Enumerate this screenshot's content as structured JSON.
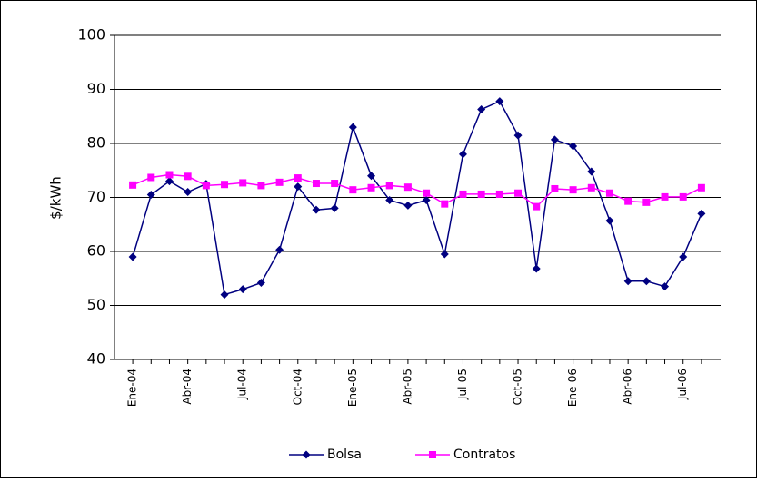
{
  "chart_data": {
    "type": "line",
    "y_label": "$/kWh",
    "categories": [
      "Ene-04",
      null,
      null,
      "Abr-04",
      null,
      null,
      "Jul-04",
      null,
      null,
      "Oct-04",
      null,
      null,
      "Ene-05",
      null,
      null,
      "Abr-05",
      null,
      null,
      "Jul-05",
      null,
      null,
      "Oct-05",
      null,
      null,
      "Ene-06",
      null,
      null,
      "Abr-06",
      null,
      null,
      "Jul-06",
      null
    ],
    "series": [
      {
        "name": "Bolsa",
        "color": "#000080",
        "marker": "diamond",
        "values": [
          59,
          70.5,
          73,
          71,
          72.5,
          52,
          53,
          54.2,
          60.3,
          72,
          67.7,
          68,
          83,
          74,
          69.5,
          68.5,
          69.5,
          59.5,
          78,
          86.3,
          87.8,
          81.5,
          56.8,
          80.7,
          79.5,
          74.8,
          65.7,
          54.5,
          54.5,
          53.5,
          59,
          67
        ]
      },
      {
        "name": "Contratos",
        "color": "#FF00FF",
        "marker": "square",
        "values": [
          72.3,
          73.7,
          74.2,
          73.9,
          72.2,
          72.4,
          72.7,
          72.2,
          72.8,
          73.6,
          72.6,
          72.6,
          71.4,
          71.8,
          72.2,
          71.9,
          70.8,
          68.8,
          70.6,
          70.6,
          70.6,
          70.8,
          68.3,
          71.6,
          71.4,
          71.8,
          70.8,
          69.3,
          69.1,
          70.1,
          70.1,
          71.8
        ]
      }
    ],
    "ylim": [
      40,
      100
    ],
    "yticks": [
      40,
      50,
      60,
      70,
      80,
      90,
      100
    ],
    "grid": true,
    "legend": "bottom"
  }
}
